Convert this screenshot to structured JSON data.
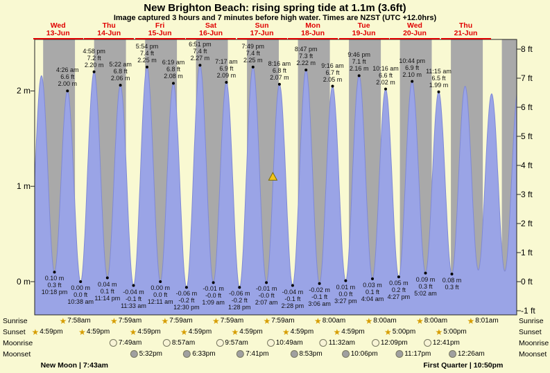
{
  "header": {
    "title": "New Brighton Beach: rising  spring tide at 1.1m (3.6ft)",
    "subtitle": "Image captured 3 hours and 7 minutes before high water. Times are NZST (UTC +12.0hrs)"
  },
  "chart_data": {
    "type": "area",
    "series_name": "Tide height",
    "x_axis": {
      "days": [
        {
          "weekday": "Wed",
          "date": "13-Jun"
        },
        {
          "weekday": "Thu",
          "date": "14-Jun"
        },
        {
          "weekday": "Fri",
          "date": "15-Jun"
        },
        {
          "weekday": "Sat",
          "date": "16-Jun"
        },
        {
          "weekday": "Sun",
          "date": "17-Jun"
        },
        {
          "weekday": "Mon",
          "date": "18-Jun"
        },
        {
          "weekday": "Tue",
          "date": "19-Jun"
        },
        {
          "weekday": "Wed",
          "date": "20-Jun"
        },
        {
          "weekday": "Thu",
          "date": "21-Jun"
        }
      ]
    },
    "y_axis_left": {
      "unit": "m",
      "tick_labels": [
        "2 m",
        "1 m",
        "0 m"
      ]
    },
    "y_axis_right": {
      "unit": "ft",
      "tick_labels": [
        "8 ft",
        "7 ft",
        "6 ft",
        "5 ft",
        "4 ft",
        "3 ft",
        "2 ft",
        "1 ft",
        "0 ft",
        "-1 ft"
      ]
    },
    "day_night_shading": true,
    "tide_events": [
      {
        "type": "low",
        "day": "12-Jun",
        "time": "10:18 pm",
        "m": "0.10 m",
        "ft": "0.3 ft"
      },
      {
        "type": "high",
        "day": "13-Jun",
        "time": "4:26 am",
        "ft": "6.6 ft",
        "m": "2.00 m"
      },
      {
        "type": "low",
        "day": "13-Jun",
        "time": "10:38 am",
        "m": "0.00 m",
        "ft": "0.0 ft"
      },
      {
        "type": "high",
        "day": "13-Jun",
        "time": "4:58 pm",
        "ft": "7.2 ft",
        "m": "2.20 m"
      },
      {
        "type": "low",
        "day": "13-Jun",
        "time": "11:14 pm",
        "m": "0.04 m",
        "ft": "0.1 ft"
      },
      {
        "type": "high",
        "day": "14-Jun",
        "time": "5:22 am",
        "ft": "6.8 ft",
        "m": "2.06 m"
      },
      {
        "type": "low",
        "day": "14-Jun",
        "time": "11:33 am",
        "m": "-0.04 m",
        "ft": "-0.1 ft"
      },
      {
        "type": "high",
        "day": "14-Jun",
        "time": "5:54 pm",
        "ft": "7.4 ft",
        "m": "2.25 m"
      },
      {
        "type": "low",
        "day": "15-Jun",
        "time": "12:11 am",
        "m": "0.00 m",
        "ft": "0.0 ft"
      },
      {
        "type": "high",
        "day": "15-Jun",
        "time": "6:19 am",
        "ft": "6.8 ft",
        "m": "2.08 m"
      },
      {
        "type": "low",
        "day": "15-Jun",
        "time": "12:30 pm",
        "m": "-0.06 m",
        "ft": "-0.2 ft"
      },
      {
        "type": "high",
        "day": "15-Jun",
        "time": "6:51 pm",
        "ft": "7.4 ft",
        "m": "2.27 m"
      },
      {
        "type": "low",
        "day": "16-Jun",
        "time": "1:09 am",
        "m": "-0.01 m",
        "ft": "-0.0 ft"
      },
      {
        "type": "high",
        "day": "16-Jun",
        "time": "7:17 am",
        "ft": "6.9 ft",
        "m": "2.09 m"
      },
      {
        "type": "low",
        "day": "16-Jun",
        "time": "1:28 pm",
        "m": "-0.06 m",
        "ft": "-0.2 ft"
      },
      {
        "type": "high",
        "day": "16-Jun",
        "time": "7:49 pm",
        "ft": "7.4 ft",
        "m": "2.25 m"
      },
      {
        "type": "low",
        "day": "17-Jun",
        "time": "2:07 am",
        "m": "-0.01 m",
        "ft": "-0.0 ft"
      },
      {
        "type": "high",
        "day": "17-Jun",
        "time": "8:16 am",
        "ft": "6.8 ft",
        "m": "2.07 m"
      },
      {
        "type": "low",
        "day": "17-Jun",
        "time": "2:28 pm",
        "m": "-0.04 m",
        "ft": "-0.1 ft"
      },
      {
        "type": "high",
        "day": "17-Jun",
        "time": "8:47 pm",
        "ft": "7.3 ft",
        "m": "2.22 m"
      },
      {
        "type": "low",
        "day": "18-Jun",
        "time": "3:06 am",
        "m": "-0.02 m",
        "ft": "-0.1 ft"
      },
      {
        "type": "high",
        "day": "18-Jun",
        "time": "9:16 am",
        "ft": "6.7 ft",
        "m": "2.05 m"
      },
      {
        "type": "low",
        "day": "18-Jun",
        "time": "3:27 pm",
        "m": "0.01 m",
        "ft": "0.0 ft"
      },
      {
        "type": "high",
        "day": "18-Jun",
        "time": "9:46 pm",
        "ft": "7.1 ft",
        "m": "2.16 m"
      },
      {
        "type": "low",
        "day": "19-Jun",
        "time": "4:04 am",
        "m": "0.03 m",
        "ft": "0.1 ft"
      },
      {
        "type": "high",
        "day": "19-Jun",
        "time": "10:16 am",
        "ft": "6.6 ft",
        "m": "2.02 m"
      },
      {
        "type": "low",
        "day": "19-Jun",
        "time": "4:27 pm",
        "m": "0.05 m",
        "ft": "0.2 ft"
      },
      {
        "type": "high",
        "day": "19-Jun",
        "time": "10:44 pm",
        "ft": "6.9 ft",
        "m": "2.10 m"
      },
      {
        "type": "low",
        "day": "20-Jun",
        "time": "5:02 am",
        "m": "0.09 m",
        "ft": "0.3 ft"
      },
      {
        "type": "high",
        "day": "20-Jun",
        "time": "11:15 am",
        "ft": "6.5 ft",
        "m": "1.99 m"
      },
      {
        "type": "low",
        "day": "20-Jun",
        "m": "0.08 m",
        "ft": "0.3 ft"
      }
    ],
    "current_marker": {
      "symbol": "triangle",
      "height_m": 1.1,
      "state": "rising"
    }
  },
  "almanac": {
    "labels": [
      "Sunrise",
      "Sunset",
      "Moonrise",
      "Moonset"
    ],
    "sunrise": [
      "7:58am",
      "7:59am",
      "7:59am",
      "7:59am",
      "7:59am",
      "8:00am",
      "8:00am",
      "8:00am",
      "8:01am"
    ],
    "sunset": [
      "4:59pm",
      "4:59pm",
      "4:59pm",
      "4:59pm",
      "4:59pm",
      "4:59pm",
      "4:59pm",
      "5:00pm",
      "5:00pm"
    ],
    "moonrise": [
      "7:49am",
      "8:57am",
      "9:57am",
      "10:49am",
      "11:32am",
      "12:09pm",
      "12:41pm"
    ],
    "moonset": [
      "5:32pm",
      "6:33pm",
      "7:41pm",
      "8:53pm",
      "10:06pm",
      "11:17pm",
      "12:26am"
    ],
    "phases": [
      {
        "label": "New Moon",
        "time": "7:43am"
      },
      {
        "label": "First Quarter",
        "time": "10:50pm"
      }
    ]
  },
  "colors": {
    "background": "#f9f9d2",
    "night_band": "#a9a9a9",
    "tide_fill": "#9aa4e6",
    "tide_line": "#7f89d6",
    "date_red": "#e00000",
    "annotation_text": "#111111",
    "star_gold": "#d69d00",
    "moonrise_icon": "#f8f4d6",
    "moonset_icon": "#a0a0a0",
    "marker_fill": "#f2c41d",
    "marker_outline": "#7a6a00"
  }
}
